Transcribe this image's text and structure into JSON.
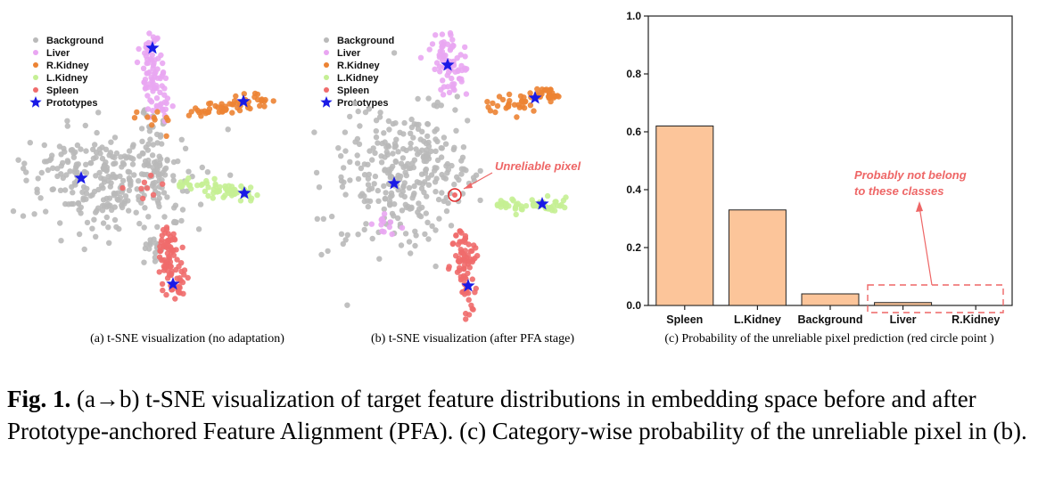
{
  "colors": {
    "Background": "#b9b9b9",
    "Liver": "#e9a6f2",
    "R.Kidney": "#ec8333",
    "L.Kidney": "#c5ef94",
    "Spleen": "#f06c6c",
    "Prototypes": "#1a1ae6",
    "bar_fill": "#fcc59a",
    "bar_stroke": "#222222",
    "annotation": "#ee6666"
  },
  "legend": {
    "items": [
      "Background",
      "Liver",
      "R.Kidney",
      "L.Kidney",
      "Spleen",
      "Prototypes"
    ]
  },
  "panel_a": {
    "caption": "(a) t-SNE visualization (no adaptation)"
  },
  "panel_b": {
    "caption": "(b) t-SNE visualization (after PFA stage)",
    "annotation": "Unreliable pixel"
  },
  "panel_c": {
    "caption": "(c) Probability of the unreliable pixel prediction (red circle point )",
    "annotation_line1": "Probably not belong",
    "annotation_line2": "to these classes"
  },
  "figure_caption": {
    "label": "Fig. 1.",
    "text": " (a→b) t-SNE visualization of target feature distributions in embedding space before and after Prototype-anchored Feature Alignment (PFA). (c) Category-wise probability of the unreliable pixel in (b)."
  },
  "chart_data": [
    {
      "type": "scatter",
      "series": [
        {
          "name": "Background"
        },
        {
          "name": "Liver"
        },
        {
          "name": "R.Kidney"
        },
        {
          "name": "L.Kidney"
        },
        {
          "name": "Spleen"
        },
        {
          "name": "Prototypes"
        }
      ]
    },
    {
      "type": "scatter",
      "series": [
        {
          "name": "Background"
        },
        {
          "name": "Liver"
        },
        {
          "name": "R.Kidney"
        },
        {
          "name": "L.Kidney"
        },
        {
          "name": "Spleen"
        },
        {
          "name": "Prototypes"
        }
      ]
    },
    {
      "type": "bar",
      "categories": [
        "Spleen",
        "L.Kidney",
        "Background",
        "Liver",
        "R.Kidney"
      ],
      "values": [
        0.62,
        0.33,
        0.04,
        0.01,
        0.0
      ],
      "ylim": [
        0,
        1.0
      ],
      "yticks": [
        "0.0",
        "0.2",
        "0.4",
        "0.6",
        "0.8",
        "1.0"
      ],
      "xlabel": "",
      "ylabel": ""
    }
  ]
}
